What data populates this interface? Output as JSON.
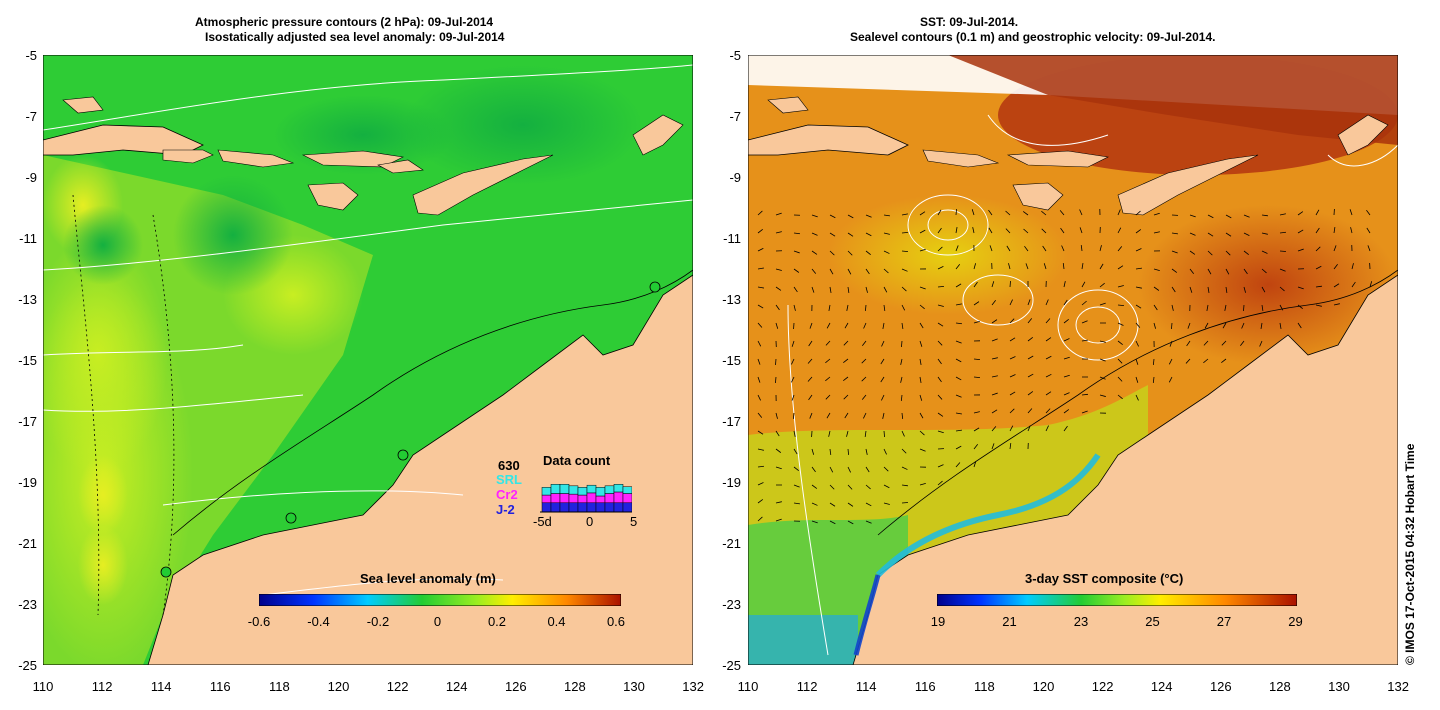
{
  "left_panel": {
    "title_line1": "Atmospheric pressure contours (2 hPa): 09-Jul-2014",
    "title_line2": "Isostatically adjusted sea level anomaly: 09-Jul-2014",
    "y_ticks": [
      "-5",
      "-7",
      "-9",
      "-11",
      "-13",
      "-15",
      "-17",
      "-19",
      "-21",
      "-23",
      "-25"
    ],
    "x_ticks": [
      "110",
      "112",
      "114",
      "116",
      "118",
      "120",
      "122",
      "124",
      "126",
      "128",
      "130",
      "132"
    ],
    "colorbar": {
      "title": "Sea level anomaly (m)",
      "ticks": [
        "-0.6",
        "-0.4",
        "-0.2",
        "0",
        "0.2",
        "0.4",
        "0.6"
      ]
    },
    "data_count": {
      "title": "Data count",
      "max_label": "630",
      "series": [
        {
          "name": "SRL",
          "color": "#33e6e6"
        },
        {
          "name": "Cr2",
          "color": "#ff22ff"
        },
        {
          "name": "J-2",
          "color": "#2222dd"
        }
      ],
      "axis_labels": [
        "-5d",
        "0",
        "5"
      ],
      "bars": [
        {
          "j2": 0.3,
          "cr2": 0.25,
          "srl": 0.25
        },
        {
          "j2": 0.3,
          "cr2": 0.3,
          "srl": 0.3
        },
        {
          "j2": 0.3,
          "cr2": 0.3,
          "srl": 0.3
        },
        {
          "j2": 0.3,
          "cr2": 0.28,
          "srl": 0.27
        },
        {
          "j2": 0.3,
          "cr2": 0.25,
          "srl": 0.25
        },
        {
          "j2": 0.3,
          "cr2": 0.32,
          "srl": 0.25
        },
        {
          "j2": 0.3,
          "cr2": 0.22,
          "srl": 0.28
        },
        {
          "j2": 0.3,
          "cr2": 0.3,
          "srl": 0.25
        },
        {
          "j2": 0.3,
          "cr2": 0.35,
          "srl": 0.25
        },
        {
          "j2": 0.3,
          "cr2": 0.3,
          "srl": 0.22
        }
      ]
    }
  },
  "right_panel": {
    "title_line1": "SST: 09-Jul-2014.",
    "title_line2": "Sealevel contours (0.1 m) and geostrophic velocity: 09-Jul-2014.",
    "y_ticks": [
      "-5",
      "-7",
      "-9",
      "-11",
      "-13",
      "-15",
      "-17",
      "-19",
      "-21",
      "-23",
      "-25"
    ],
    "x_ticks": [
      "110",
      "112",
      "114",
      "116",
      "118",
      "120",
      "122",
      "124",
      "126",
      "128",
      "130",
      "132"
    ],
    "colorbar": {
      "title": "3-day SST composite (°C)",
      "ticks": [
        "19",
        "21",
        "23",
        "25",
        "27",
        "29"
      ]
    }
  },
  "credit": "© IMOS 17-Oct-2015 04:32 Hobart Time",
  "colors": {
    "land": "#f9c89b",
    "sla_bg": "#22cc33",
    "sst_bg": "#e98d18"
  }
}
